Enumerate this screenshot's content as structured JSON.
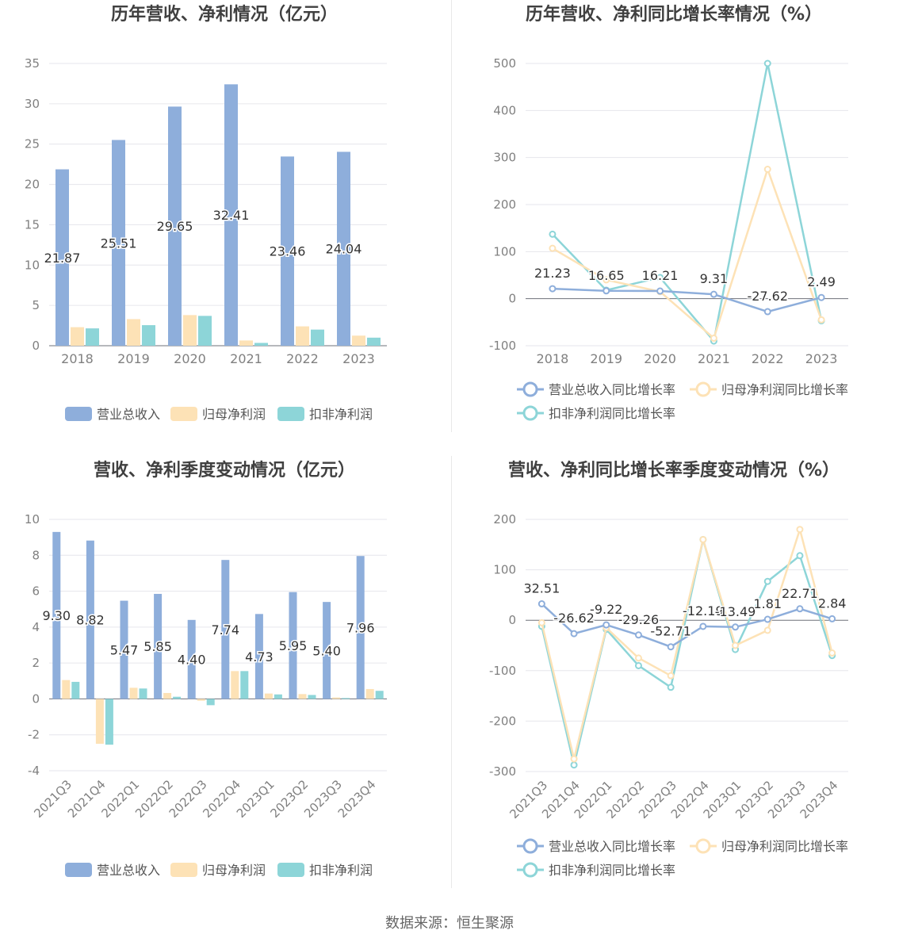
{
  "footer": {
    "source": "数据来源：恒生聚源"
  },
  "colors": {
    "revenue": "#8eaedb",
    "net_profit": "#fde2b6",
    "deducted_profit": "#8dd5d8",
    "grid": "#e6e6ec",
    "axis_label": "#808080",
    "value_label": "#333333"
  },
  "chart_data": [
    {
      "id": "annual-amount",
      "type": "bar",
      "title": "历年营收、净利情况（亿元）",
      "categories": [
        "2018",
        "2019",
        "2020",
        "2021",
        "2022",
        "2023"
      ],
      "ylim": [
        0,
        35
      ],
      "yticks": [
        0,
        5,
        10,
        15,
        20,
        25,
        30,
        35
      ],
      "grid": true,
      "legend_position": "bottom",
      "series": [
        {
          "name": "营业总收入",
          "values": [
            21.87,
            25.51,
            29.65,
            32.41,
            23.46,
            24.04
          ],
          "labels": [
            "21.87",
            "25.51",
            "29.65",
            "32.41",
            "23.46",
            "24.04"
          ]
        },
        {
          "name": "归母净利润",
          "values": [
            2.3,
            3.3,
            3.8,
            0.65,
            2.4,
            1.25
          ]
        },
        {
          "name": "扣非净利润",
          "values": [
            2.15,
            2.55,
            3.7,
            0.35,
            2.0,
            1.0
          ]
        }
      ]
    },
    {
      "id": "annual-growth",
      "type": "line",
      "title": "历年营收、净利同比增长率情况（%）",
      "categories": [
        "2018",
        "2019",
        "2020",
        "2021",
        "2022",
        "2023"
      ],
      "ylim": [
        -100,
        500
      ],
      "yticks": [
        -100,
        0,
        100,
        200,
        300,
        400,
        500
      ],
      "grid": true,
      "legend_position": "bottom",
      "series": [
        {
          "name": "营业总收入同比增长率",
          "values": [
            21.23,
            16.65,
            16.21,
            9.31,
            -27.62,
            2.49
          ],
          "labels": [
            "21.23",
            "16.65",
            "16.21",
            "9.31",
            "-27.62",
            "2.49"
          ]
        },
        {
          "name": "归母净利润同比增长率",
          "values": [
            107,
            40,
            15,
            -84,
            275,
            -45
          ]
        },
        {
          "name": "扣非净利润同比增长率",
          "values": [
            137,
            18,
            45,
            -90,
            500,
            -47
          ]
        }
      ]
    },
    {
      "id": "quarterly-amount",
      "type": "bar",
      "title": "营收、净利季度变动情况（亿元）",
      "categories": [
        "2021Q3",
        "2021Q4",
        "2022Q1",
        "2022Q2",
        "2022Q3",
        "2022Q4",
        "2023Q1",
        "2023Q2",
        "2023Q3",
        "2023Q4"
      ],
      "ylim": [
        -4,
        10
      ],
      "yticks": [
        -4,
        -2,
        0,
        2,
        4,
        6,
        8,
        10
      ],
      "grid": true,
      "legend_position": "bottom",
      "series": [
        {
          "name": "营业总收入",
          "values": [
            9.3,
            8.82,
            5.47,
            5.85,
            4.4,
            7.74,
            4.73,
            5.95,
            5.4,
            7.96
          ],
          "labels": [
            "9.30",
            "8.82",
            "5.47",
            "5.85",
            "4.40",
            "7.74",
            "4.73",
            "5.95",
            "5.40",
            "7.96"
          ]
        },
        {
          "name": "归母净利润",
          "values": [
            1.05,
            -2.5,
            0.62,
            0.33,
            -0.1,
            1.55,
            0.3,
            0.27,
            0.08,
            0.55
          ]
        },
        {
          "name": "扣非净利润",
          "values": [
            0.95,
            -2.55,
            0.58,
            0.12,
            -0.35,
            1.55,
            0.25,
            0.22,
            0.05,
            0.45
          ]
        }
      ]
    },
    {
      "id": "quarterly-growth",
      "type": "line",
      "title": "营收、净利同比增长率季度变动情况（%）",
      "categories": [
        "2021Q3",
        "2021Q4",
        "2022Q1",
        "2022Q2",
        "2022Q3",
        "2022Q4",
        "2023Q1",
        "2023Q2",
        "2023Q3",
        "2023Q4"
      ],
      "ylim": [
        -300,
        200
      ],
      "yticks": [
        -300,
        -200,
        -100,
        0,
        100,
        200
      ],
      "grid": true,
      "legend_position": "bottom",
      "series": [
        {
          "name": "营业总收入同比增长率",
          "values": [
            32.51,
            -26.62,
            -9.22,
            -29.26,
            -52.71,
            -12.19,
            -13.49,
            1.81,
            22.71,
            2.84
          ],
          "labels": [
            "32.51",
            "-26.62",
            "-9.22",
            "-29.26",
            "-52.71",
            "-12.19",
            "-13.49",
            "1.81",
            "22.71",
            "2.84"
          ]
        },
        {
          "name": "归母净利润同比增长率",
          "values": [
            -5,
            -275,
            -15,
            -75,
            -110,
            160,
            -50,
            -20,
            180,
            -65
          ]
        },
        {
          "name": "扣非净利润同比增长率",
          "values": [
            -12,
            -287,
            -18,
            -90,
            -133,
            160,
            -58,
            77,
            128,
            -70
          ]
        }
      ]
    }
  ]
}
